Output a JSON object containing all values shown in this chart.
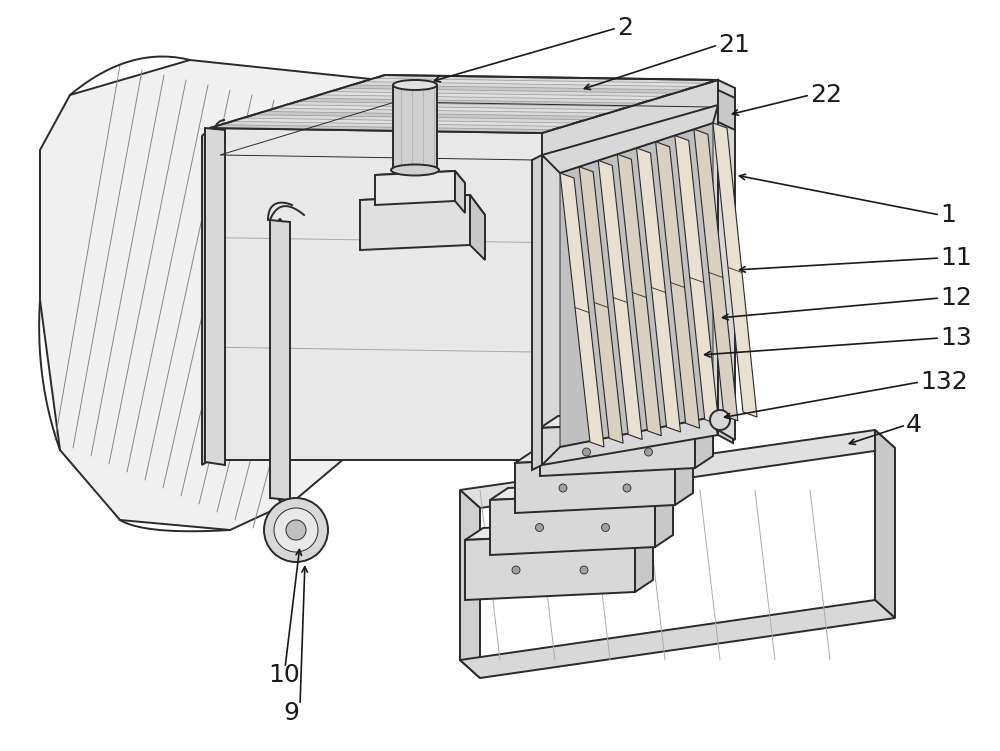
{
  "bg_color": "#ffffff",
  "lc": "#2a2a2a",
  "figsize": [
    10.0,
    7.51
  ],
  "lw": 1.4,
  "lw_thin": 0.7
}
